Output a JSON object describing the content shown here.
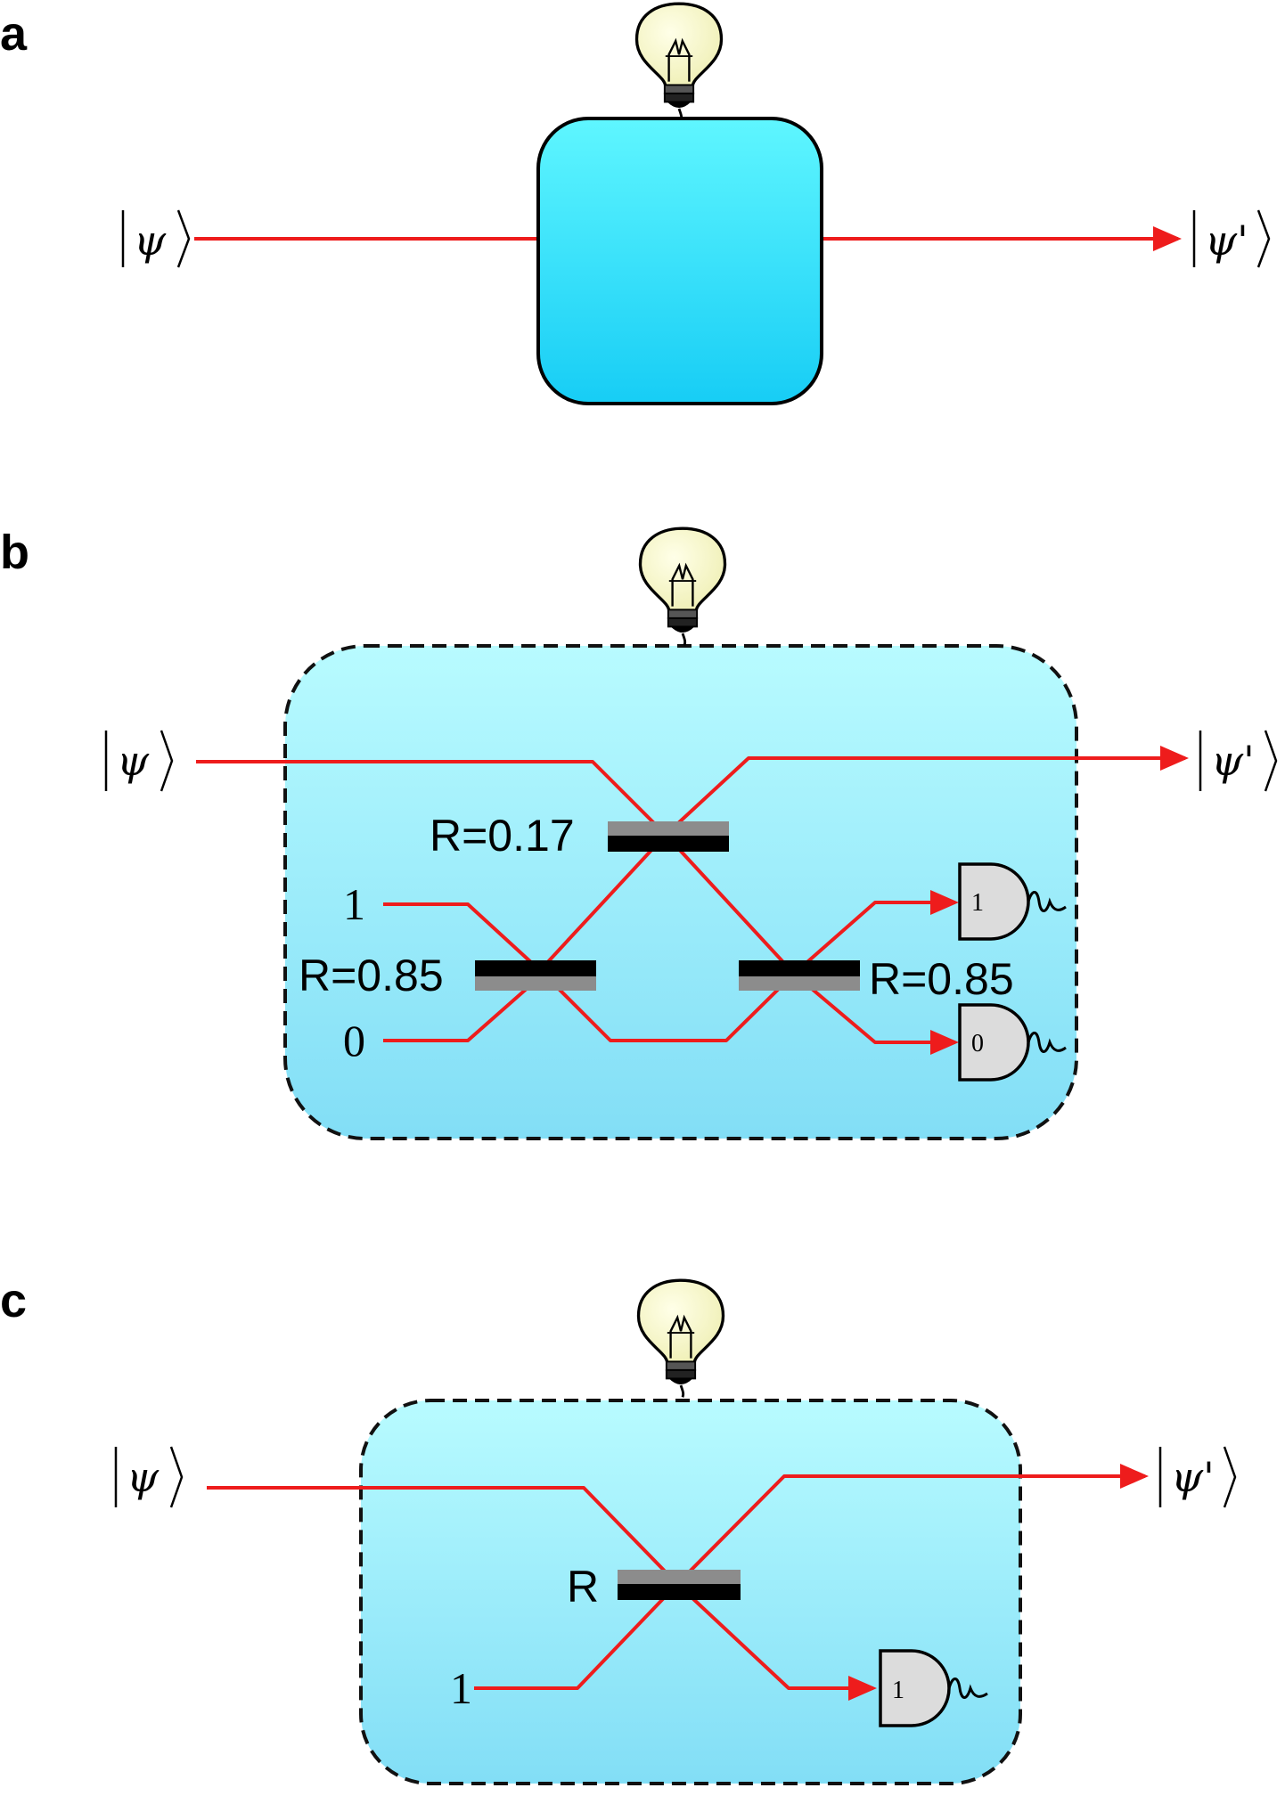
{
  "panels": {
    "a": {
      "label": "a",
      "input_ket": "ψ",
      "output_ket": "ψ'"
    },
    "b": {
      "label": "b",
      "input_ket": "ψ",
      "output_ket": "ψ'",
      "beamsplitter_top": "R=0.17",
      "beamsplitter_left": "R=0.85",
      "beamsplitter_right": "R=0.85",
      "input_top": "1",
      "input_bottom": "0",
      "detector_top": "1",
      "detector_bottom": "0"
    },
    "c": {
      "label": "c",
      "input_ket": "ψ",
      "output_ket": "ψ'",
      "beamsplitter": "R",
      "input": "1",
      "detector": "1"
    }
  },
  "colors": {
    "beam": "#ee1c1c",
    "box_solid_top": "#5ff6ff",
    "box_solid_bottom": "#17cdf5",
    "box_light_top": "#b8fbff",
    "box_light_bottom": "#82def6",
    "bulb": "#fafac8",
    "detector": "#dcdcdc"
  },
  "icons": [
    "light-bulb-icon",
    "photon-detector-icon",
    "beam-splitter"
  ]
}
